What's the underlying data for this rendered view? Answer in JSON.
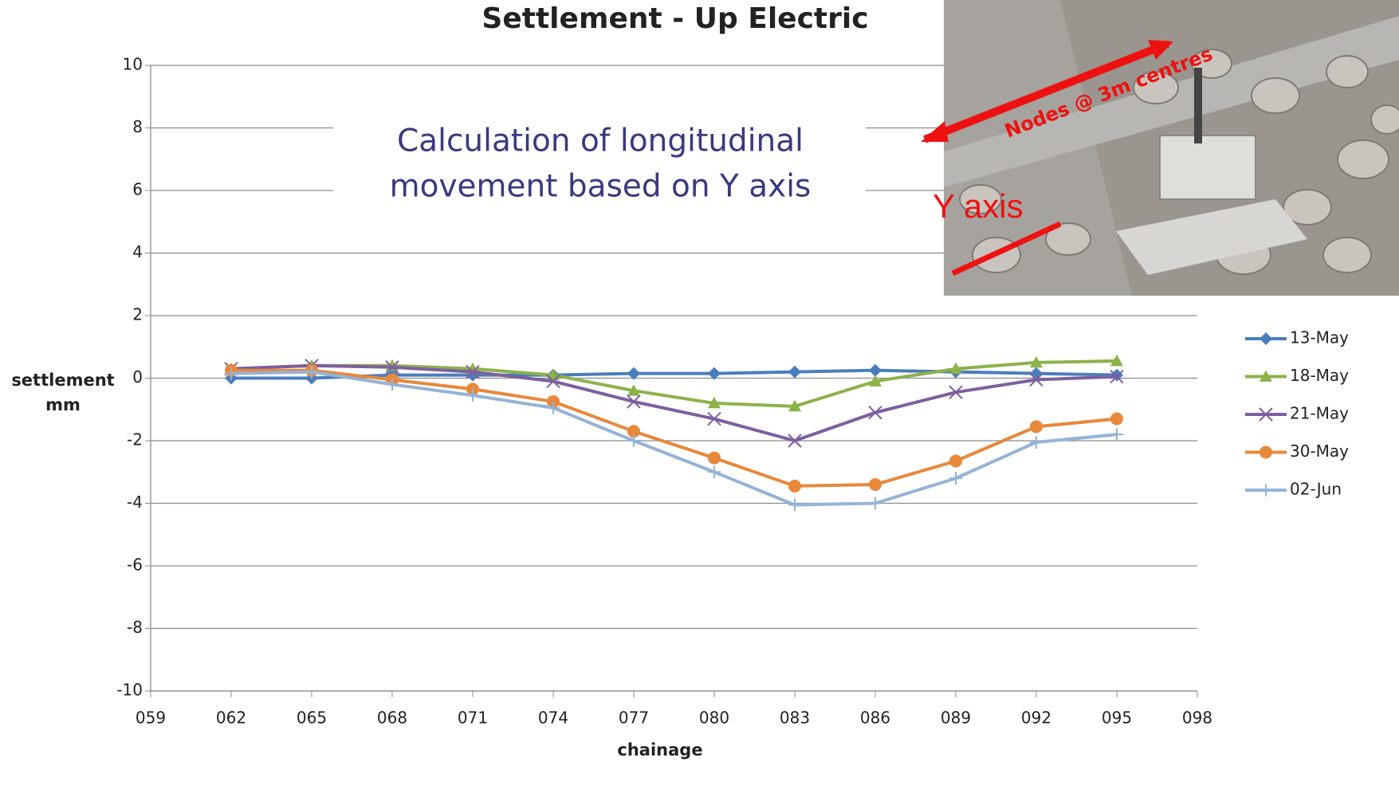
{
  "chart_data": {
    "type": "line",
    "title": "Settlement - Up Electric",
    "xlabel": "chainage",
    "ylabel": [
      "settlement",
      "mm"
    ],
    "x": [
      62,
      65,
      68,
      71,
      74,
      77,
      80,
      83,
      86,
      89,
      92,
      95
    ],
    "xlim": [
      59,
      98
    ],
    "xticks": [
      {
        "value": 59,
        "label": "059"
      },
      {
        "value": 62,
        "label": "062"
      },
      {
        "value": 65,
        "label": "065"
      },
      {
        "value": 68,
        "label": "068"
      },
      {
        "value": 71,
        "label": "071"
      },
      {
        "value": 74,
        "label": "074"
      },
      {
        "value": 77,
        "label": "077"
      },
      {
        "value": 80,
        "label": "080"
      },
      {
        "value": 83,
        "label": "083"
      },
      {
        "value": 86,
        "label": "086"
      },
      {
        "value": 89,
        "label": "089"
      },
      {
        "value": 92,
        "label": "092"
      },
      {
        "value": 95,
        "label": "095"
      },
      {
        "value": 98,
        "label": "098"
      }
    ],
    "ylim": [
      -10,
      10
    ],
    "yticks": [
      -10,
      -8,
      -6,
      -4,
      -2,
      0,
      2,
      4,
      6,
      8,
      10
    ],
    "grid": true,
    "legend": "right",
    "series": [
      {
        "name": "13-May",
        "color": "#4a7ebb",
        "marker": "diamond",
        "values": [
          0,
          0,
          0.1,
          0.1,
          0.1,
          0.15,
          0.15,
          0.2,
          0.25,
          0.2,
          0.15,
          0.1
        ]
      },
      {
        "name": "18-May",
        "color": "#8cb24a",
        "marker": "triangle",
        "values": [
          0.3,
          0.4,
          0.4,
          0.3,
          0.1,
          -0.4,
          -0.8,
          -0.9,
          -0.1,
          0.3,
          0.5,
          0.55
        ]
      },
      {
        "name": "21-May",
        "color": "#7d5fa0",
        "marker": "x",
        "values": [
          0.3,
          0.4,
          0.35,
          0.2,
          -0.1,
          -0.75,
          -1.3,
          -2.0,
          -1.1,
          -0.45,
          -0.05,
          0.05
        ]
      },
      {
        "name": "30-May",
        "color": "#e8883a",
        "marker": "circle",
        "values": [
          0.25,
          0.25,
          -0.05,
          -0.35,
          -0.75,
          -1.7,
          -2.55,
          -3.45,
          -3.4,
          -2.65,
          -1.55,
          -1.3
        ]
      },
      {
        "name": "02-Jun",
        "color": "#95b3d7",
        "marker": "plus",
        "values": [
          0.15,
          0.2,
          -0.2,
          -0.55,
          -0.95,
          -2.0,
          -3.0,
          -4.05,
          -4.0,
          -3.2,
          -2.05,
          -1.8
        ]
      }
    ]
  },
  "overlay": {
    "text": [
      "Calculation of longitudinal",
      "movement based on Y axis"
    ],
    "photo_labels": {
      "nodes": "Nodes @ 3m centres",
      "axis": "Y axis"
    }
  }
}
